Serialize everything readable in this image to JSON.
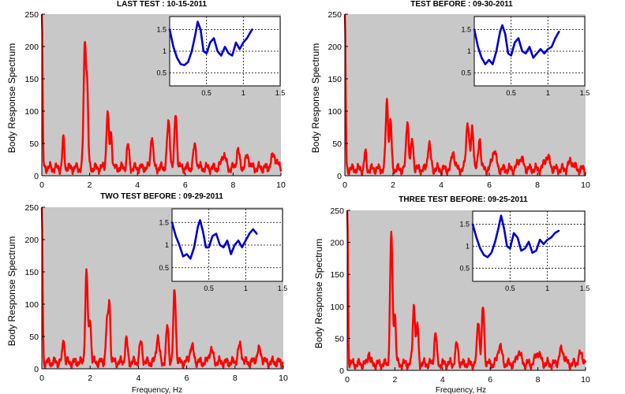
{
  "chart_data": [
    {
      "type": "line",
      "title": "LAST TEST : 10-15-2011",
      "ylabel": "Body Response Spectrum",
      "xlabel": "",
      "xlim": [
        0,
        10
      ],
      "ylim": [
        0,
        250
      ],
      "xticks": [
        "0",
        "2",
        "4",
        "6",
        "8",
        "10"
      ],
      "yticks": [
        "0",
        "50",
        "100",
        "150",
        "200",
        "250"
      ],
      "background": "#c8c8c8",
      "grid": false,
      "series": [
        {
          "color": "#ff0000",
          "baseline": 12,
          "peaks": [
            [
              0.0,
              250,
              0.03
            ],
            [
              0.9,
              45,
              0.04
            ],
            [
              1.8,
              193,
              0.05
            ],
            [
              1.9,
              110,
              0.04
            ],
            [
              2.75,
              85,
              0.05
            ],
            [
              2.9,
              55,
              0.04
            ],
            [
              3.6,
              35,
              0.05
            ],
            [
              4.6,
              52,
              0.05
            ],
            [
              5.3,
              70,
              0.06
            ],
            [
              5.6,
              85,
              0.05
            ],
            [
              6.4,
              35,
              0.06
            ],
            [
              7.6,
              22,
              0.08
            ],
            [
              8.2,
              28,
              0.06
            ],
            [
              8.6,
              18,
              0.08
            ],
            [
              9.7,
              20,
              0.1
            ]
          ]
        }
      ],
      "inset": {
        "xlim": [
          0,
          1.5
        ],
        "ylim": [
          0.2,
          1.8
        ],
        "xticks": [
          "0.5",
          "1",
          "1.5"
        ],
        "yticks": [
          "0.5",
          "1",
          "1.5"
        ],
        "grid": true,
        "color": "#0000cc",
        "points": [
          [
            0.0,
            1.5
          ],
          [
            0.05,
            1.1
          ],
          [
            0.1,
            0.85
          ],
          [
            0.15,
            0.7
          ],
          [
            0.2,
            0.68
          ],
          [
            0.25,
            0.75
          ],
          [
            0.3,
            1.0
          ],
          [
            0.35,
            1.4
          ],
          [
            0.38,
            1.68
          ],
          [
            0.42,
            1.5
          ],
          [
            0.46,
            1.0
          ],
          [
            0.5,
            0.95
          ],
          [
            0.55,
            1.2
          ],
          [
            0.6,
            1.3
          ],
          [
            0.65,
            1.0
          ],
          [
            0.7,
            0.9
          ],
          [
            0.75,
            1.1
          ],
          [
            0.8,
            0.95
          ],
          [
            0.85,
            0.9
          ],
          [
            0.9,
            1.2
          ],
          [
            0.95,
            1.05
          ],
          [
            1.0,
            1.2
          ],
          [
            1.05,
            1.3
          ],
          [
            1.1,
            1.45
          ],
          [
            1.12,
            1.5
          ]
        ]
      }
    },
    {
      "type": "line",
      "title": "TEST BEFORE : 09-30-2011",
      "ylabel": "Body Response Spectrum",
      "xlabel": "",
      "xlim": [
        0,
        10
      ],
      "ylim": [
        0,
        250
      ],
      "xticks": [
        "0",
        "2",
        "4",
        "6",
        "8",
        "10"
      ],
      "yticks": [
        "0",
        "50",
        "100",
        "150",
        "200",
        "250"
      ],
      "background": "#c8c8c8",
      "grid": false,
      "series": [
        {
          "color": "#ff0000",
          "baseline": 10,
          "peaks": [
            [
              0.0,
              250,
              0.03
            ],
            [
              0.85,
              25,
              0.04
            ],
            [
              1.75,
              108,
              0.05
            ],
            [
              1.9,
              75,
              0.04
            ],
            [
              2.6,
              78,
              0.05
            ],
            [
              2.8,
              45,
              0.05
            ],
            [
              3.5,
              40,
              0.06
            ],
            [
              4.5,
              28,
              0.06
            ],
            [
              5.1,
              75,
              0.06
            ],
            [
              5.3,
              65,
              0.05
            ],
            [
              5.6,
              50,
              0.05
            ],
            [
              6.2,
              30,
              0.08
            ],
            [
              7.3,
              18,
              0.1
            ],
            [
              8.4,
              20,
              0.1
            ],
            [
              9.4,
              12,
              0.1
            ]
          ]
        }
      ],
      "inset": {
        "xlim": [
          0,
          1.5
        ],
        "ylim": [
          0.2,
          1.8
        ],
        "xticks": [
          "0.5",
          "1",
          "1.5"
        ],
        "yticks": [
          "0.5",
          "1",
          "1.5"
        ],
        "grid": true,
        "color": "#0000cc",
        "points": [
          [
            0.0,
            1.5
          ],
          [
            0.05,
            1.1
          ],
          [
            0.1,
            0.85
          ],
          [
            0.15,
            0.7
          ],
          [
            0.2,
            0.8
          ],
          [
            0.25,
            0.7
          ],
          [
            0.3,
            1.0
          ],
          [
            0.35,
            1.45
          ],
          [
            0.38,
            1.6
          ],
          [
            0.42,
            1.4
          ],
          [
            0.46,
            0.95
          ],
          [
            0.5,
            0.9
          ],
          [
            0.55,
            1.2
          ],
          [
            0.6,
            1.3
          ],
          [
            0.65,
            1.0
          ],
          [
            0.7,
            0.95
          ],
          [
            0.75,
            1.1
          ],
          [
            0.8,
            0.85
          ],
          [
            0.85,
            0.95
          ],
          [
            0.9,
            1.05
          ],
          [
            0.95,
            0.95
          ],
          [
            1.0,
            1.05
          ],
          [
            1.05,
            1.1
          ],
          [
            1.1,
            1.3
          ],
          [
            1.15,
            1.45
          ]
        ]
      }
    },
    {
      "type": "line",
      "title": "TWO TEST BEFORE : 09-29-2011",
      "ylabel": "Body Response Spectrum",
      "xlabel": "Frequency, Hz",
      "xlim": [
        0,
        10
      ],
      "ylim": [
        0,
        250
      ],
      "xticks": [
        "0",
        "2",
        "4",
        "6",
        "8",
        "10"
      ],
      "yticks": [
        "0",
        "50",
        "100",
        "150",
        "200",
        "250"
      ],
      "background": "#c8c8c8",
      "grid": false,
      "series": [
        {
          "color": "#ff0000",
          "baseline": 10,
          "peaks": [
            [
              0.0,
              250,
              0.03
            ],
            [
              0.9,
              40,
              0.04
            ],
            [
              1.85,
              140,
              0.05
            ],
            [
              2.0,
              70,
              0.04
            ],
            [
              2.7,
              60,
              0.05
            ],
            [
              2.8,
              88,
              0.04
            ],
            [
              3.5,
              35,
              0.05
            ],
            [
              4.1,
              30,
              0.06
            ],
            [
              4.8,
              40,
              0.06
            ],
            [
              5.2,
              55,
              0.05
            ],
            [
              5.5,
              112,
              0.05
            ],
            [
              6.2,
              25,
              0.08
            ],
            [
              7.0,
              20,
              0.08
            ],
            [
              8.2,
              25,
              0.08
            ],
            [
              9.0,
              18,
              0.1
            ]
          ]
        }
      ],
      "inset": {
        "xlim": [
          0,
          1.5
        ],
        "ylim": [
          0.2,
          1.8
        ],
        "xticks": [
          "0.5",
          "1",
          "1.5"
        ],
        "yticks": [
          "0.5",
          "1",
          "1.5"
        ],
        "grid": true,
        "color": "#0000cc",
        "points": [
          [
            0.0,
            1.5
          ],
          [
            0.05,
            1.2
          ],
          [
            0.1,
            1.0
          ],
          [
            0.15,
            0.75
          ],
          [
            0.2,
            0.8
          ],
          [
            0.25,
            0.7
          ],
          [
            0.3,
            0.95
          ],
          [
            0.35,
            1.4
          ],
          [
            0.38,
            1.55
          ],
          [
            0.42,
            1.3
          ],
          [
            0.46,
            0.95
          ],
          [
            0.5,
            0.95
          ],
          [
            0.55,
            1.2
          ],
          [
            0.6,
            1.25
          ],
          [
            0.65,
            1.0
          ],
          [
            0.7,
            0.95
          ],
          [
            0.75,
            1.1
          ],
          [
            0.8,
            0.8
          ],
          [
            0.85,
            1.0
          ],
          [
            0.9,
            1.1
          ],
          [
            0.95,
            0.95
          ],
          [
            1.0,
            1.1
          ],
          [
            1.05,
            1.25
          ],
          [
            1.1,
            1.35
          ],
          [
            1.15,
            1.25
          ]
        ]
      }
    },
    {
      "type": "line",
      "title": "THREE TEST BEFORE:    09-25-2011",
      "ylabel": "Body Response Spectrum",
      "xlabel": "Frequency, Hz",
      "xlim": [
        0,
        10
      ],
      "ylim": [
        0,
        250
      ],
      "xticks": [
        "0",
        "2",
        "4",
        "6",
        "8",
        "10"
      ],
      "yticks": [
        "0",
        "50",
        "100",
        "150",
        "200",
        "250"
      ],
      "background": "#c8c8c8",
      "grid": false,
      "series": [
        {
          "color": "#ff0000",
          "baseline": 10,
          "peaks": [
            [
              0.0,
              250,
              0.03
            ],
            [
              0.9,
              20,
              0.04
            ],
            [
              1.85,
              205,
              0.05
            ],
            [
              2.0,
              80,
              0.04
            ],
            [
              2.8,
              95,
              0.05
            ],
            [
              2.95,
              60,
              0.04
            ],
            [
              3.7,
              48,
              0.05
            ],
            [
              4.6,
              30,
              0.06
            ],
            [
              5.5,
              70,
              0.05
            ],
            [
              5.7,
              88,
              0.05
            ],
            [
              6.4,
              30,
              0.08
            ],
            [
              7.2,
              20,
              0.08
            ],
            [
              8.0,
              18,
              0.1
            ],
            [
              9.0,
              22,
              0.1
            ],
            [
              9.8,
              15,
              0.1
            ]
          ]
        }
      ],
      "inset": {
        "xlim": [
          0,
          1.5
        ],
        "ylim": [
          0.2,
          1.8
        ],
        "xticks": [
          "0.5",
          "1",
          "1.5"
        ],
        "yticks": [
          "0.5",
          "1",
          "1.5"
        ],
        "grid": true,
        "color": "#0000cc",
        "points": [
          [
            0.0,
            1.5
          ],
          [
            0.05,
            1.2
          ],
          [
            0.1,
            0.95
          ],
          [
            0.15,
            0.8
          ],
          [
            0.2,
            0.75
          ],
          [
            0.25,
            0.85
          ],
          [
            0.3,
            1.1
          ],
          [
            0.35,
            1.45
          ],
          [
            0.38,
            1.7
          ],
          [
            0.42,
            1.4
          ],
          [
            0.46,
            1.0
          ],
          [
            0.5,
            0.95
          ],
          [
            0.55,
            1.3
          ],
          [
            0.6,
            1.2
          ],
          [
            0.65,
            0.9
          ],
          [
            0.7,
            0.95
          ],
          [
            0.75,
            1.1
          ],
          [
            0.8,
            0.85
          ],
          [
            0.85,
            0.9
          ],
          [
            0.9,
            1.15
          ],
          [
            0.95,
            1.05
          ],
          [
            1.0,
            1.15
          ],
          [
            1.05,
            1.2
          ],
          [
            1.1,
            1.3
          ],
          [
            1.15,
            1.35
          ]
        ]
      }
    }
  ]
}
